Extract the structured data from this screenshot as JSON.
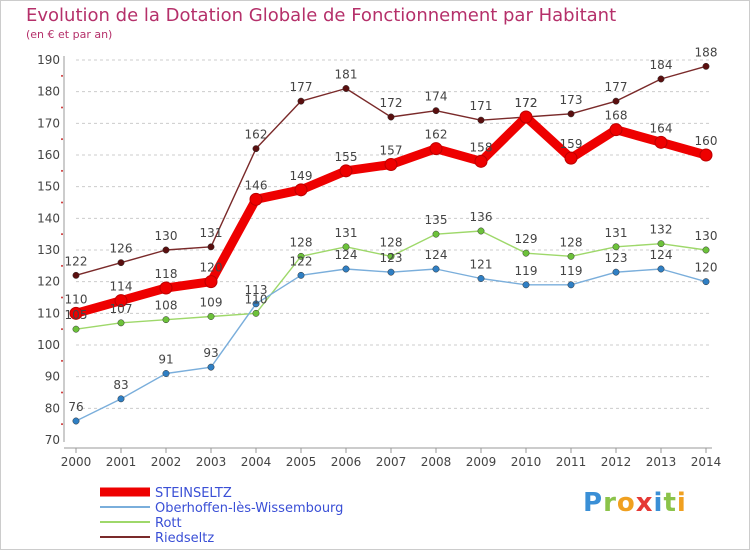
{
  "header": {
    "title": "Evolution de la Dotation Globale de Fonctionnement par Habitant",
    "subtitle": "(en € et par an)"
  },
  "logo": {
    "text": "Proxiti",
    "letters": [
      {
        "ch": "P",
        "color": "#3a8fd6"
      },
      {
        "ch": "r",
        "color": "#8bc34a"
      },
      {
        "ch": "o",
        "color": "#f0a020"
      },
      {
        "ch": "x",
        "color": "#e53935"
      },
      {
        "ch": "i",
        "color": "#3a8fd6"
      },
      {
        "ch": "t",
        "color": "#8bc34a"
      },
      {
        "ch": "i",
        "color": "#f0a020"
      }
    ]
  },
  "chart_data": {
    "type": "line",
    "title": "Evolution de la Dotation Globale de Fonctionnement par Habitant",
    "subtitle": "(en € et par an)",
    "xlabel": "",
    "ylabel": "",
    "x": [
      "2000",
      "2001",
      "2002",
      "2003",
      "2004",
      "2005",
      "2006",
      "2007",
      "2008",
      "2009",
      "2010",
      "2011",
      "2012",
      "2013",
      "2014"
    ],
    "ylim": [
      70,
      190
    ],
    "yticks": [
      "70",
      "80",
      "90",
      "100",
      "110",
      "120",
      "130",
      "140",
      "150",
      "160",
      "170",
      "180",
      "190"
    ],
    "grid": "horizontal dashed",
    "legend_position": "bottom-left",
    "series": [
      {
        "name": "Riedseltz",
        "color": "#7a2a2a",
        "marker": "#5a0f0f",
        "values": [
          122,
          126,
          130,
          131,
          162,
          177,
          181,
          172,
          174,
          171,
          172,
          173,
          177,
          184,
          188
        ],
        "labels": [
          "122",
          "126",
          "130",
          "131",
          "162",
          "177",
          "181",
          "172",
          "174",
          "171",
          "172",
          "173",
          "177",
          "184",
          "188"
        ]
      },
      {
        "name": "Rott",
        "color": "#9ed86a",
        "marker": "#6cc23a",
        "values": [
          105,
          107,
          108,
          109,
          110,
          128,
          131,
          128,
          135,
          136,
          129,
          128,
          131,
          132,
          130
        ],
        "labels": [
          "105",
          "107",
          "108",
          "109",
          "110",
          "128",
          "131",
          "128",
          "135",
          "136",
          "129",
          "128",
          "131",
          "132",
          "130"
        ]
      },
      {
        "name": "Oberhoffen-lès-Wissembourg",
        "color": "#7aaedb",
        "marker": "#2f7fc4",
        "values": [
          76,
          83,
          91,
          93,
          113,
          122,
          124,
          123,
          124,
          121,
          119,
          119,
          123,
          124,
          120
        ],
        "labels": [
          "76",
          "83",
          "91",
          "93",
          "113",
          "122",
          "124",
          "123",
          "124",
          "121",
          "119",
          "119",
          "123",
          "124",
          "120"
        ]
      },
      {
        "name": "STEINSELTZ",
        "color": "#ee0000",
        "marker": "#ee0000",
        "values": [
          110,
          114,
          118,
          120,
          146,
          149,
          155,
          157,
          162,
          158,
          172,
          159,
          168,
          164,
          160
        ],
        "labels": [
          "110",
          "114",
          "118",
          "120",
          "146",
          "149",
          "155",
          "157",
          "162",
          "158",
          "172",
          "159",
          "168",
          "164",
          "160"
        ]
      }
    ],
    "legend": [
      "STEINSELTZ",
      "Oberhoffen-lès-Wissembourg",
      "Rott",
      "Riedseltz"
    ]
  }
}
